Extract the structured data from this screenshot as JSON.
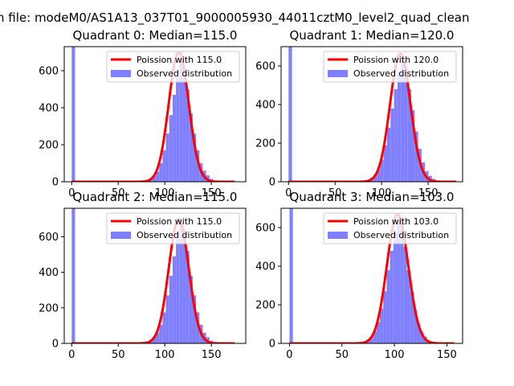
{
  "figure": {
    "suptitle": "n file: modeM0/AS1A13_037T01_9000005930_44011cztM0_level2_quad_clean"
  },
  "colors": {
    "histogram": "#8080ff",
    "poisson": "#ff0000",
    "axes": "#000000"
  },
  "chart_data": [
    {
      "type": "bar",
      "title": "Quadrant 0: Median=115.0",
      "xlim": [
        -8,
        187
      ],
      "ylim": [
        0,
        730
      ],
      "xticks": [
        0,
        50,
        100,
        150
      ],
      "yticks": [
        0,
        200,
        400,
        600
      ],
      "legend": {
        "position": "top-right",
        "entries": [
          "Poission with 115.0",
          "Observed distribution"
        ]
      },
      "median": 115.0,
      "bin_width": 3.6,
      "histogram": [
        {
          "x": 0,
          "y": 740
        },
        {
          "x": 76,
          "y": 5
        },
        {
          "x": 79.6,
          "y": 10
        },
        {
          "x": 83.2,
          "y": 20
        },
        {
          "x": 86.8,
          "y": 30
        },
        {
          "x": 90.4,
          "y": 55
        },
        {
          "x": 94,
          "y": 100
        },
        {
          "x": 97.6,
          "y": 170
        },
        {
          "x": 101.2,
          "y": 260
        },
        {
          "x": 104.8,
          "y": 360
        },
        {
          "x": 108.4,
          "y": 470
        },
        {
          "x": 112,
          "y": 560
        },
        {
          "x": 115.6,
          "y": 650
        },
        {
          "x": 119.2,
          "y": 620
        },
        {
          "x": 122.8,
          "y": 500
        },
        {
          "x": 126.4,
          "y": 370
        },
        {
          "x": 130,
          "y": 260
        },
        {
          "x": 133.6,
          "y": 170
        },
        {
          "x": 137.2,
          "y": 100
        },
        {
          "x": 140.8,
          "y": 60
        },
        {
          "x": 144.4,
          "y": 35
        },
        {
          "x": 148,
          "y": 15
        },
        {
          "x": 151.6,
          "y": 5
        }
      ],
      "poisson_line": {
        "label": "Poission with 115.0",
        "mean": 115.0,
        "peak": 700,
        "x_range": [
          0,
          175
        ]
      }
    },
    {
      "type": "bar",
      "title": "Quadrant 1: Median=120.0",
      "xlim": [
        -8,
        187
      ],
      "ylim": [
        0,
        700
      ],
      "xticks": [
        0,
        50,
        100,
        150
      ],
      "yticks": [
        0,
        200,
        400,
        600
      ],
      "legend": {
        "position": "top-right",
        "entries": [
          "Poission with 120.0",
          "Observed distribution"
        ]
      },
      "median": 120.0,
      "bin_width": 3.7,
      "histogram": [
        {
          "x": 0,
          "y": 710
        },
        {
          "x": 80,
          "y": 5
        },
        {
          "x": 83.7,
          "y": 10
        },
        {
          "x": 87.4,
          "y": 20
        },
        {
          "x": 91.1,
          "y": 35
        },
        {
          "x": 94.8,
          "y": 65
        },
        {
          "x": 98.5,
          "y": 115
        },
        {
          "x": 102.2,
          "y": 190
        },
        {
          "x": 105.9,
          "y": 280
        },
        {
          "x": 109.6,
          "y": 380
        },
        {
          "x": 113.3,
          "y": 480
        },
        {
          "x": 117,
          "y": 570
        },
        {
          "x": 120.7,
          "y": 620
        },
        {
          "x": 124.4,
          "y": 600
        },
        {
          "x": 128.1,
          "y": 480
        },
        {
          "x": 131.8,
          "y": 370
        },
        {
          "x": 135.5,
          "y": 260
        },
        {
          "x": 139.2,
          "y": 170
        },
        {
          "x": 142.9,
          "y": 100
        },
        {
          "x": 146.6,
          "y": 55
        },
        {
          "x": 150.3,
          "y": 30
        },
        {
          "x": 154,
          "y": 15
        },
        {
          "x": 157.7,
          "y": 5
        }
      ],
      "poisson_line": {
        "label": "Poission with 120.0",
        "mean": 120.0,
        "peak": 665,
        "x_range": [
          0,
          180
        ]
      }
    },
    {
      "type": "bar",
      "title": "Quadrant 2: Median=115.0",
      "xlim": [
        -8,
        187
      ],
      "ylim": [
        0,
        760
      ],
      "xticks": [
        0,
        50,
        100,
        150
      ],
      "yticks": [
        0,
        200,
        400,
        600
      ],
      "legend": {
        "position": "top-right",
        "entries": [
          "Poission with 115.0",
          "Observed distribution"
        ]
      },
      "median": 115.0,
      "bin_width": 3.6,
      "histogram": [
        {
          "x": 0,
          "y": 770
        },
        {
          "x": 76,
          "y": 5
        },
        {
          "x": 79.6,
          "y": 10
        },
        {
          "x": 83.2,
          "y": 20
        },
        {
          "x": 86.8,
          "y": 35
        },
        {
          "x": 90.4,
          "y": 60
        },
        {
          "x": 94,
          "y": 105
        },
        {
          "x": 97.6,
          "y": 175
        },
        {
          "x": 101.2,
          "y": 270
        },
        {
          "x": 104.8,
          "y": 380
        },
        {
          "x": 108.4,
          "y": 490
        },
        {
          "x": 112,
          "y": 590
        },
        {
          "x": 115.6,
          "y": 680
        },
        {
          "x": 119.2,
          "y": 640
        },
        {
          "x": 122.8,
          "y": 520
        },
        {
          "x": 126.4,
          "y": 380
        },
        {
          "x": 130,
          "y": 270
        },
        {
          "x": 133.6,
          "y": 175
        },
        {
          "x": 137.2,
          "y": 105
        },
        {
          "x": 140.8,
          "y": 60
        },
        {
          "x": 144.4,
          "y": 35
        },
        {
          "x": 148,
          "y": 15
        },
        {
          "x": 151.6,
          "y": 5
        }
      ],
      "poisson_line": {
        "label": "Poission with 115.0",
        "mean": 115.0,
        "peak": 700,
        "x_range": [
          0,
          175
        ]
      }
    },
    {
      "type": "bar",
      "title": "Quadrant 3: Median=103.0",
      "xlim": [
        -8,
        165
      ],
      "ylim": [
        0,
        700
      ],
      "xticks": [
        0,
        50,
        100,
        150
      ],
      "yticks": [
        0,
        200,
        400,
        600
      ],
      "legend": {
        "position": "top-right",
        "entries": [
          "Poission with 103.0",
          "Observed distribution"
        ]
      },
      "median": 103.0,
      "bin_width": 3.2,
      "histogram": [
        {
          "x": 0,
          "y": 710
        },
        {
          "x": 67,
          "y": 5
        },
        {
          "x": 70.2,
          "y": 10
        },
        {
          "x": 73.4,
          "y": 20
        },
        {
          "x": 76.6,
          "y": 35
        },
        {
          "x": 79.8,
          "y": 65
        },
        {
          "x": 83,
          "y": 110
        },
        {
          "x": 86.2,
          "y": 180
        },
        {
          "x": 89.4,
          "y": 270
        },
        {
          "x": 92.6,
          "y": 380
        },
        {
          "x": 95.8,
          "y": 480
        },
        {
          "x": 99,
          "y": 580
        },
        {
          "x": 102.2,
          "y": 640
        },
        {
          "x": 105.4,
          "y": 610
        },
        {
          "x": 108.6,
          "y": 500
        },
        {
          "x": 111.8,
          "y": 380
        },
        {
          "x": 115,
          "y": 270
        },
        {
          "x": 118.2,
          "y": 175
        },
        {
          "x": 121.4,
          "y": 105
        },
        {
          "x": 124.6,
          "y": 60
        },
        {
          "x": 127.8,
          "y": 35
        },
        {
          "x": 131,
          "y": 15
        },
        {
          "x": 134.2,
          "y": 5
        }
      ],
      "poisson_line": {
        "label": "Poission with 103.0",
        "mean": 103.0,
        "peak": 670,
        "x_range": [
          0,
          157
        ]
      }
    }
  ]
}
